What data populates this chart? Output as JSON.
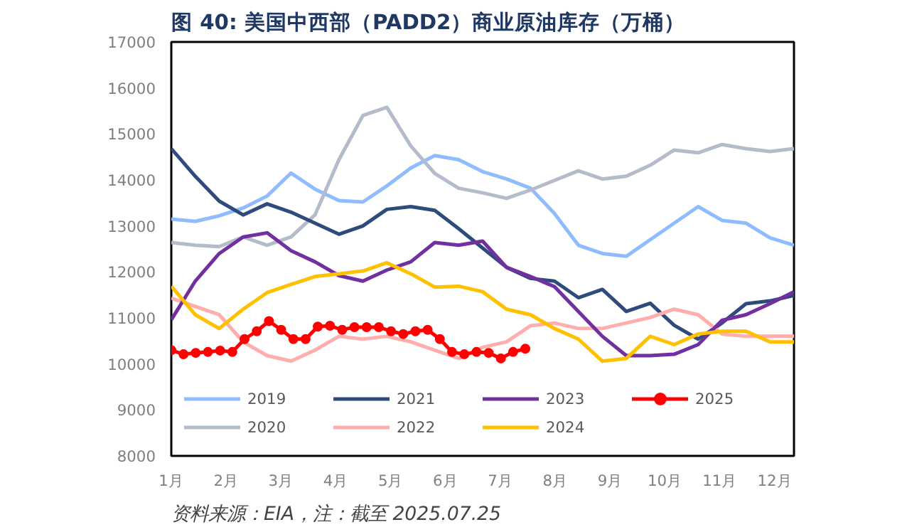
{
  "chart_data": {
    "type": "line",
    "title": "图 40:  美国中西部（PADD2）商业原油库存（万桶）",
    "annotations": [
      "资料来源：EIA，注：截至 2025.07.25"
    ],
    "x": [
      1,
      1.4365,
      1.873,
      2.3095,
      2.746,
      3.1825,
      3.619,
      4.0555,
      4.492,
      4.9285,
      5.365,
      5.8015,
      6.238,
      6.6745,
      7.111,
      7.5475,
      7.984,
      8.4205,
      8.857,
      9.2935,
      9.73,
      10.1665,
      10.603,
      11.0395,
      11.476,
      11.9125,
      12.35
    ],
    "xlim": [
      1,
      12.35
    ],
    "ylim": [
      8000,
      17000
    ],
    "xticks": [
      {
        "value": 1,
        "label": "1月"
      },
      {
        "value": 2,
        "label": "2月"
      },
      {
        "value": 3,
        "label": "3月"
      },
      {
        "value": 4,
        "label": "4月"
      },
      {
        "value": 5,
        "label": "5月"
      },
      {
        "value": 6,
        "label": "6月"
      },
      {
        "value": 7,
        "label": "7月"
      },
      {
        "value": 8,
        "label": "8月"
      },
      {
        "value": 9,
        "label": "9月"
      },
      {
        "value": 10,
        "label": "10月"
      },
      {
        "value": 11,
        "label": "11月"
      },
      {
        "value": 12,
        "label": "12月"
      }
    ],
    "yticks": [
      8000,
      9000,
      10000,
      11000,
      12000,
      13000,
      14000,
      15000,
      16000,
      17000
    ],
    "grid": false,
    "legend": "bottom",
    "marker": "none",
    "line_style": "solid",
    "series": [
      {
        "name": "2019",
        "color": "#8fbcff",
        "values": [
          13150,
          13100,
          13220,
          13390,
          13650,
          14150,
          13800,
          13550,
          13520,
          13870,
          14260,
          14530,
          14440,
          14180,
          14020,
          13820,
          13270,
          12580,
          12400,
          12340,
          12700,
          13060,
          13420,
          13120,
          13060,
          12740,
          12580
        ]
      },
      {
        "name": "2020",
        "color": "#b4bccc",
        "values": [
          12640,
          12580,
          12550,
          12760,
          12580,
          12760,
          13240,
          14440,
          15400,
          15580,
          14740,
          14140,
          13820,
          13720,
          13600,
          13780,
          13990,
          14200,
          14020,
          14080,
          14320,
          14650,
          14590,
          14770,
          14680,
          14620,
          14680
        ]
      },
      {
        "name": "2021",
        "color": "#2f4b7c",
        "values": [
          14680,
          14080,
          13540,
          13240,
          13480,
          13300,
          13060,
          12820,
          13000,
          13360,
          13420,
          13340,
          12940,
          12520,
          12100,
          11860,
          11800,
          11440,
          11620,
          11140,
          11320,
          10840,
          10540,
          10890,
          11310,
          11370,
          11490
        ]
      },
      {
        "name": "2022",
        "color": "#ffadad",
        "values": [
          11430,
          11250,
          11070,
          10480,
          10180,
          10060,
          10300,
          10600,
          10540,
          10600,
          10480,
          10300,
          10120,
          10360,
          10480,
          10830,
          10890,
          10770,
          10770,
          10890,
          11010,
          11190,
          11070,
          10650,
          10600,
          10600,
          10600
        ]
      },
      {
        "name": "2023",
        "color": "#7030a0",
        "values": [
          10960,
          11800,
          12400,
          12760,
          12850,
          12460,
          12220,
          11920,
          11800,
          12040,
          12220,
          12640,
          12580,
          12670,
          12100,
          11900,
          11680,
          11140,
          10600,
          10180,
          10180,
          10210,
          10420,
          10950,
          11070,
          11310,
          11570
        ]
      },
      {
        "name": "2024",
        "color": "#ffc000",
        "values": [
          11690,
          11070,
          10770,
          11190,
          11550,
          11730,
          11900,
          11960,
          12020,
          12200,
          11960,
          11670,
          11690,
          11570,
          11190,
          11070,
          10770,
          10540,
          10060,
          10120,
          10600,
          10420,
          10650,
          10710,
          10710,
          10480,
          10480
        ]
      },
      {
        "name": "2025",
        "color": "#ff0000",
        "marker": "circle",
        "x": [
          1,
          1.2225,
          1.445,
          1.6675,
          1.89,
          2.1125,
          2.335,
          2.5575,
          2.78,
          3.0025,
          3.225,
          3.4475,
          3.67,
          3.8925,
          4.115,
          4.3375,
          4.56,
          4.7825,
          5.005,
          5.2275,
          5.45,
          5.6725,
          5.895,
          6.1175,
          6.34,
          6.5625,
          6.785,
          7.0075,
          7.23,
          7.4525
        ],
        "values": [
          10300,
          10210,
          10240,
          10260,
          10290,
          10260,
          10540,
          10710,
          10930,
          10740,
          10540,
          10540,
          10810,
          10830,
          10740,
          10800,
          10800,
          10800,
          10710,
          10650,
          10710,
          10740,
          10540,
          10260,
          10210,
          10260,
          10240,
          10120,
          10260,
          10330
        ]
      }
    ]
  }
}
